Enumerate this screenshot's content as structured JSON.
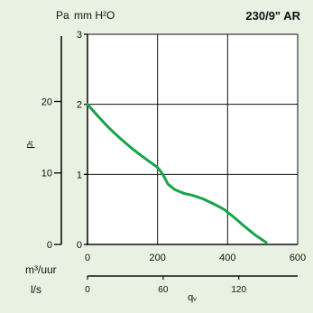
{
  "chart_data": {
    "type": "line",
    "title": "230/9\" AR",
    "units_top_left": "Pa",
    "units_top_right": "mm H²O",
    "ylabel": "pₜ",
    "xlabel": "qᵥ",
    "x_primary_label": "m³/uur",
    "x_secondary_label": "l/s",
    "x_primary_ticks": [
      "0",
      "200",
      "400",
      "600"
    ],
    "x_primary_lim": [
      0,
      600
    ],
    "x_secondary_ticks": [
      "0",
      "60",
      "120"
    ],
    "x_secondary_tick_values": [
      0,
      60,
      120
    ],
    "x_secondary_lim": [
      0,
      166.7
    ],
    "y_mmh2o_ticks": [
      "0",
      "1",
      "2",
      "3"
    ],
    "y_mmh2o_lim": [
      0,
      3
    ],
    "y_pa_ticks": [
      "0",
      "10",
      "20"
    ],
    "y_pa_tick_values": [
      0,
      10,
      20
    ],
    "y_pa_lim": [
      0,
      29.4
    ],
    "grid": true,
    "colors": {
      "curve": "#17a34a",
      "background": "#e8f1e2",
      "plot_bg": "#ffffff"
    },
    "series": [
      {
        "x": [
          0,
          30,
          60,
          90,
          120,
          150,
          180,
          200,
          215,
          230,
          250,
          275,
          300,
          330,
          360,
          390,
          420,
          450,
          480,
          510
        ],
        "y": [
          2.0,
          1.83,
          1.67,
          1.53,
          1.4,
          1.28,
          1.17,
          1.1,
          1.0,
          0.86,
          0.78,
          0.73,
          0.7,
          0.65,
          0.58,
          0.5,
          0.38,
          0.25,
          0.13,
          0.03
        ]
      }
    ]
  }
}
